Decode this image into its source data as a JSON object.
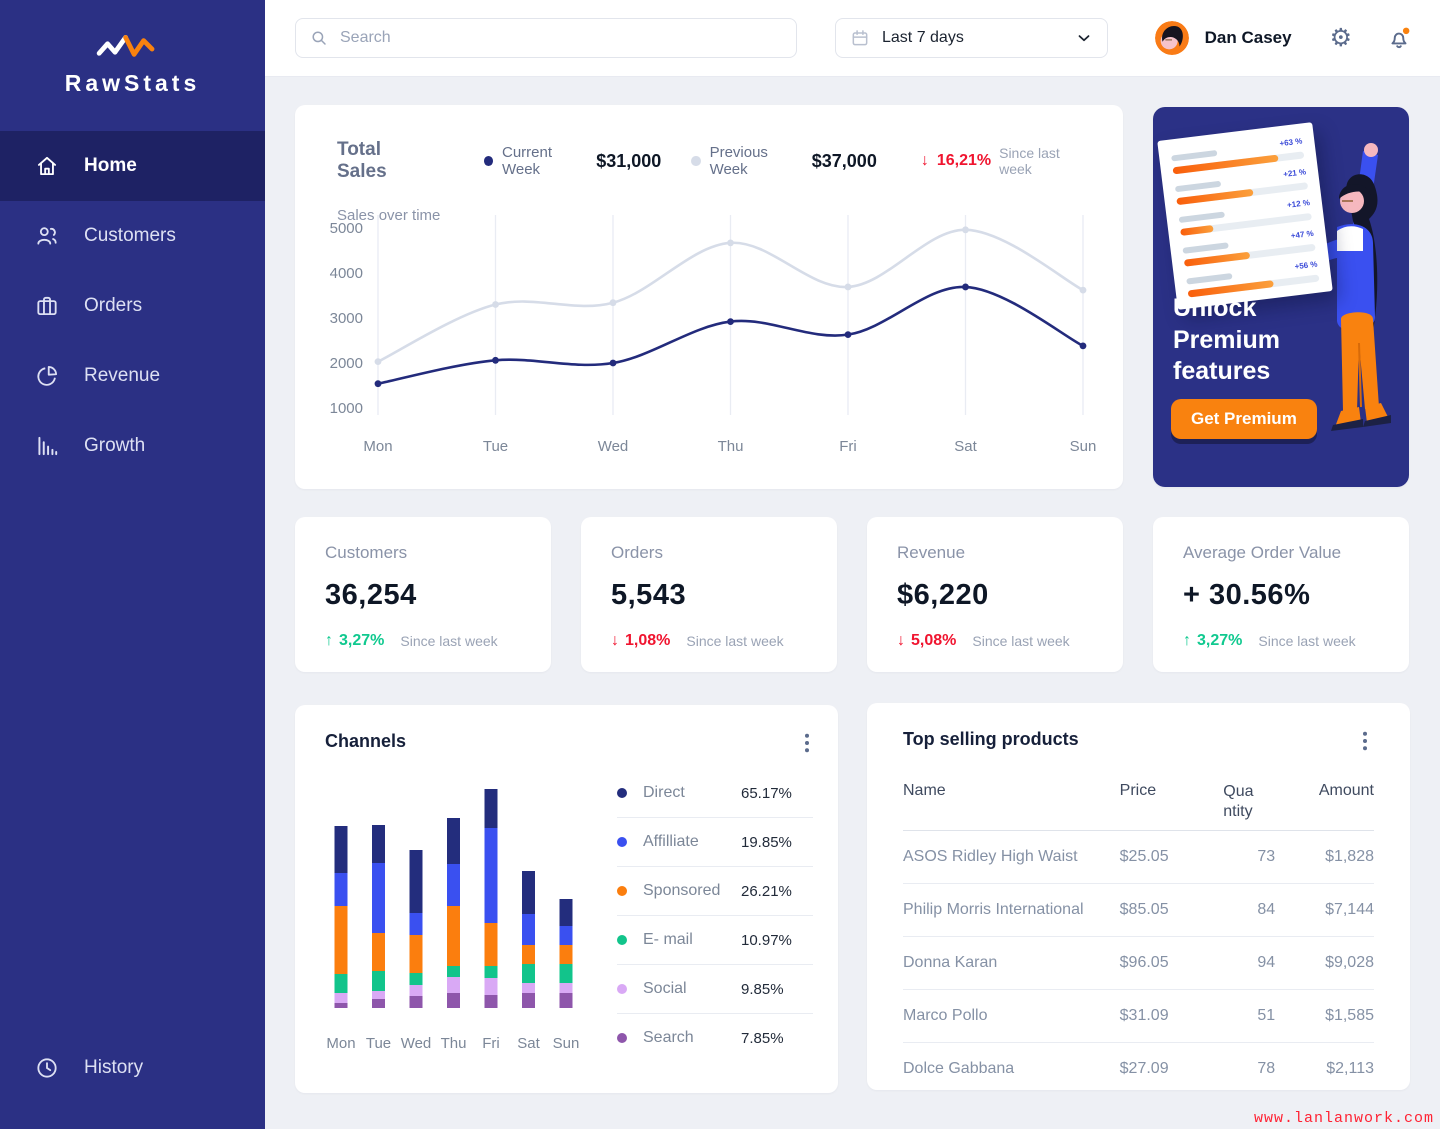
{
  "brand": {
    "name": "RawStats"
  },
  "sidebar": {
    "items": [
      {
        "label": "Home",
        "icon": "home-icon",
        "active": true
      },
      {
        "label": "Customers",
        "icon": "customers-icon",
        "active": false
      },
      {
        "label": "Orders",
        "icon": "orders-icon",
        "active": false
      },
      {
        "label": "Revenue",
        "icon": "revenue-icon",
        "active": false
      },
      {
        "label": "Growth",
        "icon": "growth-icon",
        "active": false
      }
    ],
    "history": {
      "label": "History",
      "icon": "history-icon",
      "active": false
    }
  },
  "topbar": {
    "search_placeholder": "Search",
    "date_range": "Last 7 days",
    "user_name": "Dan Casey"
  },
  "sales": {
    "title": "Total Sales",
    "subtitle": "Sales over time",
    "current_label": "Current Week",
    "current_value": "$31,000",
    "previous_label": "Previous Week",
    "previous_value": "$37,000",
    "delta": "16,21%",
    "delta_note": "Since last week"
  },
  "stats": [
    {
      "label": "Customers",
      "value": "36,254",
      "delta": "3,27%",
      "direction": "up",
      "note": "Since last week"
    },
    {
      "label": "Orders",
      "value": "5,543",
      "delta": "1,08%",
      "direction": "down",
      "note": "Since last week"
    },
    {
      "label": "Revenue",
      "value": "$6,220",
      "delta": "5,08%",
      "direction": "down",
      "note": "Since last week"
    },
    {
      "label": "Average Order Value",
      "value": "+ 30.56%",
      "delta": "3,27%",
      "direction": "up",
      "note": "Since last week"
    }
  ],
  "channels": {
    "title": "Channels"
  },
  "products": {
    "title": "Top selling products",
    "columns": [
      "Name",
      "Price",
      "Quantity",
      "Amount"
    ],
    "rows": [
      [
        "ASOS Ridley High Waist",
        "$25.05",
        "73",
        "$1,828"
      ],
      [
        "Philip Morris International",
        "$85.05",
        "84",
        "$7,144"
      ],
      [
        "Donna Karan",
        "$96.05",
        "94",
        "$9,028"
      ],
      [
        "Marco Pollo",
        "$31.09",
        "51",
        "$1,585"
      ],
      [
        "Dolce  Gabbana",
        "$27.09",
        "78",
        "$2,113"
      ]
    ]
  },
  "premium": {
    "heading": "Unlock Premium features",
    "button_label": "Get Premium",
    "bars": [
      {
        "label": "+63 %",
        "fill": 80
      },
      {
        "label": "+21 %",
        "fill": 58
      },
      {
        "label": "+12 %",
        "fill": 25
      },
      {
        "label": "+47 %",
        "fill": 50
      },
      {
        "label": "+56 %",
        "fill": 65
      }
    ]
  },
  "watermark": "www.lanlanwork.com",
  "colors": {
    "sidebar": "#2b3084",
    "sidebar_active": "#1e2264",
    "accent_orange": "#f9820f",
    "positive": "#10c98f",
    "negative": "#f0142f",
    "current_week": "#232b7c",
    "previous_week": "#d6dce8",
    "background": "#eef0f5"
  },
  "chart_data": [
    {
      "id": "sales_over_time",
      "type": "line",
      "title": "Total Sales",
      "subtitle": "Sales over time",
      "x": [
        "Mon",
        "Tue",
        "Wed",
        "Thu",
        "Fri",
        "Sat",
        "Sun"
      ],
      "ylim": [
        1000,
        5000
      ],
      "yticks": [
        1000,
        2000,
        3000,
        4000,
        5000
      ],
      "grid": "vertical",
      "legend_position": "top",
      "series": [
        {
          "name": "Current Week",
          "color": "#232b7c",
          "total": "$31,000",
          "values": [
            1540,
            2060,
            2000,
            2920,
            2630,
            3690,
            2380
          ]
        },
        {
          "name": "Previous Week",
          "color": "#d6dce8",
          "total": "$37,000",
          "values": [
            2030,
            3300,
            3340,
            4670,
            3690,
            4960,
            3620
          ]
        }
      ]
    },
    {
      "id": "channels",
      "type": "bar",
      "stacked": true,
      "categories": [
        "Mon",
        "Tue",
        "Wed",
        "Thu",
        "Fri",
        "Sat",
        "Sun"
      ],
      "series": [
        {
          "name": "Search",
          "color": "#8e56ab",
          "share": "7.85%",
          "values": [
            5,
            9,
            12,
            15,
            13,
            15,
            15
          ]
        },
        {
          "name": "Social",
          "color": "#d9a9f5",
          "share": "9.85%",
          "values": [
            10,
            8,
            11,
            16,
            17,
            10,
            10
          ]
        },
        {
          "name": "E- mail",
          "color": "#12c48b",
          "share": "10.97%",
          "values": [
            19,
            20,
            12,
            11,
            12,
            19,
            19
          ]
        },
        {
          "name": "Sponsored",
          "color": "#fb7e0e",
          "share": "26.21%",
          "values": [
            68,
            38,
            38,
            60,
            43,
            19,
            19
          ]
        },
        {
          "name": "Affilliate",
          "color": "#3a50f0",
          "share": "19.85%",
          "values": [
            33,
            70,
            22,
            42,
            95,
            31,
            19
          ]
        },
        {
          "name": "Direct",
          "color": "#232d7d",
          "share": "65.17%",
          "values": [
            47,
            38,
            63,
            46,
            39,
            43,
            27
          ]
        }
      ],
      "legend_order": [
        "Direct",
        "Affilliate",
        "Sponsored",
        "E- mail",
        "Social",
        "Search"
      ]
    }
  ]
}
